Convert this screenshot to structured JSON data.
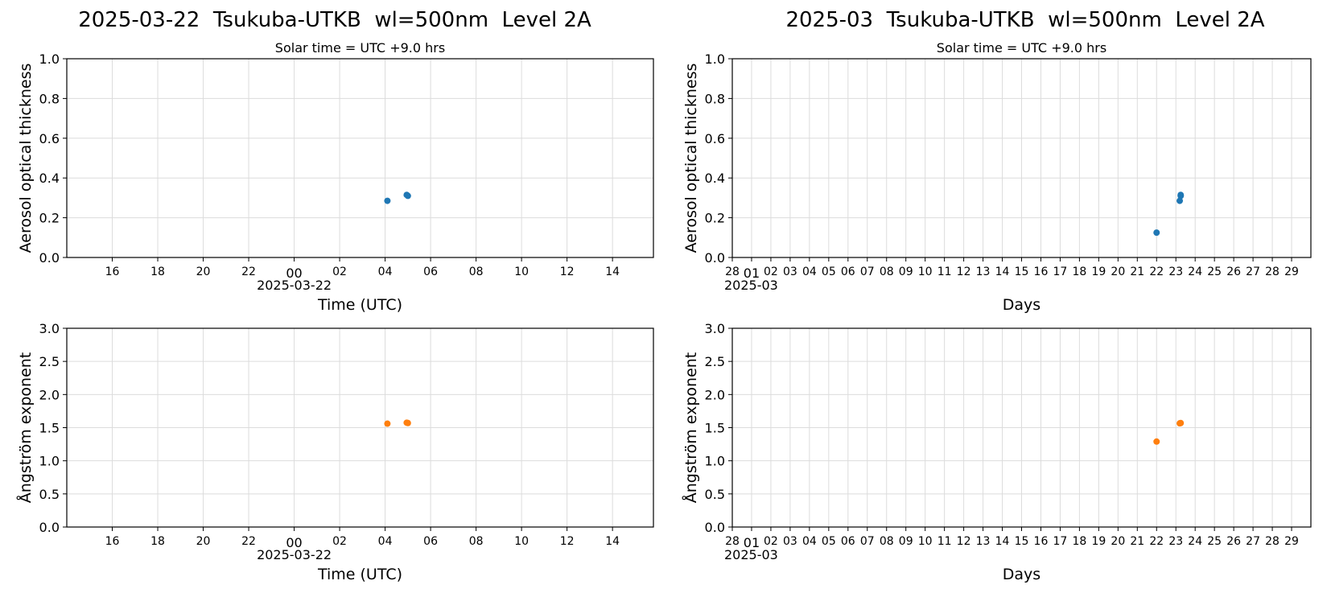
{
  "titles": {
    "daily": "2025-03-22  Tsukuba-UTKB  wl=500nm  Level 2A",
    "monthly": "2025-03  Tsukuba-UTKB  wl=500nm  Level 2A"
  },
  "colors": {
    "aot": "#1f77b4",
    "angstrom": "#ff7f0e",
    "grid": "#dcdcdc"
  },
  "chart_data": [
    {
      "id": "daily-aot",
      "type": "scatter",
      "subtitle": "Solar time = UTC +9.0 hrs",
      "xlabel": "Time (UTC)",
      "ylabel": "Aerosol optical thickness",
      "date_label": "2025-03-22",
      "x_ticks": [
        "16",
        "18",
        "20",
        "22",
        "00",
        "02",
        "04",
        "06",
        "08",
        "10",
        "12",
        "14"
      ],
      "x_range_hours": [
        -9,
        15
      ],
      "ylim": [
        0,
        1
      ],
      "y_ticks": [
        "0.0",
        "0.2",
        "0.4",
        "0.6",
        "0.8",
        "1.0"
      ],
      "grid": true,
      "series": [
        {
          "color": "aot",
          "points": [
            [
              4.1,
              0.285
            ],
            [
              4.95,
              0.315
            ],
            [
              5.0,
              0.31
            ]
          ]
        }
      ]
    },
    {
      "id": "monthly-aot",
      "type": "scatter",
      "subtitle": "Solar time = UTC +9.0 hrs",
      "xlabel": "Days",
      "ylabel": "Aerosol optical thickness",
      "date_label": "2025-03",
      "x_ticks": [
        "28",
        "01",
        "02",
        "03",
        "04",
        "05",
        "06",
        "07",
        "08",
        "09",
        "10",
        "11",
        "12",
        "13",
        "14",
        "15",
        "16",
        "17",
        "18",
        "19",
        "20",
        "21",
        "22",
        "23",
        "24",
        "25",
        "26",
        "27",
        "28",
        "29"
      ],
      "x_range_days": [
        -1,
        29
      ],
      "ylim": [
        0,
        1
      ],
      "y_ticks": [
        "0.0",
        "0.2",
        "0.4",
        "0.6",
        "0.8",
        "1.0"
      ],
      "grid": true,
      "series": [
        {
          "color": "aot",
          "points": [
            [
              21.0,
              0.125
            ],
            [
              22.2,
              0.285
            ],
            [
              22.25,
              0.315
            ],
            [
              22.25,
              0.31
            ]
          ]
        }
      ]
    },
    {
      "id": "daily-angstrom",
      "type": "scatter",
      "xlabel": "Time (UTC)",
      "ylabel": "Ångström exponent",
      "date_label": "2025-03-22",
      "x_ticks": [
        "16",
        "18",
        "20",
        "22",
        "00",
        "02",
        "04",
        "06",
        "08",
        "10",
        "12",
        "14"
      ],
      "x_range_hours": [
        -9,
        15
      ],
      "ylim": [
        0,
        3
      ],
      "y_ticks": [
        "0.0",
        "0.5",
        "1.0",
        "1.5",
        "2.0",
        "2.5",
        "3.0"
      ],
      "grid": true,
      "series": [
        {
          "color": "angstrom",
          "points": [
            [
              4.1,
              1.56
            ],
            [
              4.95,
              1.575
            ],
            [
              5.0,
              1.57
            ]
          ]
        }
      ]
    },
    {
      "id": "monthly-angstrom",
      "type": "scatter",
      "xlabel": "Days",
      "ylabel": "Ångström exponent",
      "date_label": "2025-03",
      "x_ticks": [
        "28",
        "01",
        "02",
        "03",
        "04",
        "05",
        "06",
        "07",
        "08",
        "09",
        "10",
        "11",
        "12",
        "13",
        "14",
        "15",
        "16",
        "17",
        "18",
        "19",
        "20",
        "21",
        "22",
        "23",
        "24",
        "25",
        "26",
        "27",
        "28",
        "29"
      ],
      "x_range_days": [
        -1,
        29
      ],
      "ylim": [
        0,
        3
      ],
      "y_ticks": [
        "0.0",
        "0.5",
        "1.0",
        "1.5",
        "2.0",
        "2.5",
        "3.0"
      ],
      "grid": true,
      "series": [
        {
          "color": "angstrom",
          "points": [
            [
              21.0,
              1.29
            ],
            [
              22.2,
              1.565
            ],
            [
              22.25,
              1.57
            ]
          ]
        }
      ]
    }
  ]
}
